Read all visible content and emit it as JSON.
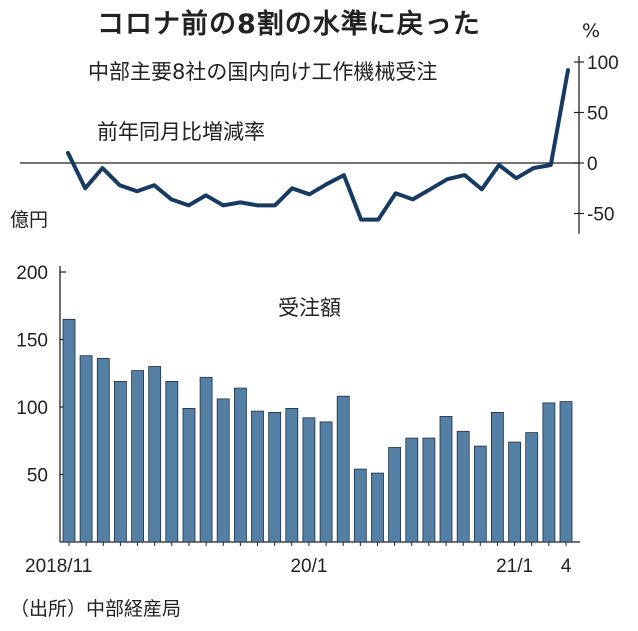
{
  "title": "コロナ前の8割の水準に戻った",
  "subtitle": "中部主要8社の国内向け工作機械受注",
  "source": "（出所）中部経産局",
  "colors": {
    "line": "#173a63",
    "bar": "#5580a5",
    "bar_edge": "#1e2e44",
    "axis": "#222222",
    "grid": "#bbbbbb"
  },
  "chart_data": [
    {
      "type": "line",
      "label": "前年同月比増減率",
      "unit": "%",
      "ylim": [
        -70,
        100
      ],
      "yticks": [
        100,
        50,
        0,
        -50
      ],
      "ytick_labels": [
        "100",
        "50",
        "0",
        "-50"
      ],
      "values": [
        10,
        -25,
        -5,
        -22,
        -28,
        -22,
        -36,
        -42,
        -32,
        -42,
        -39,
        -42,
        -42,
        -25,
        -31,
        -21,
        -12,
        -56,
        -56,
        -30,
        -36,
        -26,
        -16,
        -12,
        -26,
        -2,
        -15,
        -5,
        -2,
        92
      ]
    },
    {
      "type": "bar",
      "label": "受注額",
      "unit": "億円",
      "ylim": [
        0,
        200
      ],
      "yticks": [
        200,
        150,
        100,
        50
      ],
      "ytick_labels": [
        "200",
        "150",
        "100",
        "50"
      ],
      "xtick_labels": [
        {
          "index": 0,
          "text": "2018/11"
        },
        {
          "index": 14,
          "text": "20/1"
        },
        {
          "index": 26,
          "text": "21/1"
        },
        {
          "index": 29,
          "text": "4"
        }
      ],
      "values": [
        165,
        138,
        136,
        119,
        127,
        130,
        119,
        99,
        122,
        106,
        114,
        97,
        96,
        99,
        92,
        89,
        108,
        54,
        51,
        70,
        77,
        77,
        93,
        82,
        71,
        96,
        74,
        81,
        103,
        104
      ]
    }
  ]
}
